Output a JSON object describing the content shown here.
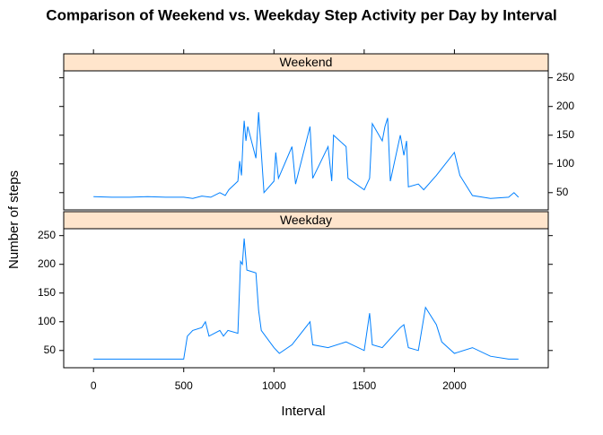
{
  "chart_data": {
    "type": "line",
    "title": "Comparison of Weekend vs. Weekday Step Activity per Day by Interval",
    "x_label": "Interval",
    "y_label": "Number of steps",
    "xlim": [
      -165,
      2520
    ],
    "xticks": [
      0,
      500,
      1000,
      1500,
      2000
    ],
    "ylim": [
      20,
      262
    ],
    "yticks": [
      50,
      100,
      150,
      200,
      250
    ],
    "color": "#0080ff",
    "strip_color": "#ffe5cc",
    "panels": [
      {
        "name": "Weekend",
        "x": [
          0,
          100,
          200,
          300,
          400,
          500,
          550,
          600,
          650,
          700,
          730,
          750,
          800,
          810,
          820,
          830,
          835,
          845,
          855,
          900,
          915,
          930,
          945,
          1000,
          1010,
          1025,
          1100,
          1120,
          1200,
          1215,
          1300,
          1320,
          1330,
          1400,
          1410,
          1500,
          1530,
          1545,
          1600,
          1615,
          1630,
          1645,
          1700,
          1720,
          1735,
          1745,
          1800,
          1830,
          1900,
          2000,
          2030,
          2100,
          2200,
          2300,
          2330,
          2355
        ],
        "values": [
          43,
          42,
          42,
          43,
          42,
          42,
          40,
          44,
          42,
          50,
          45,
          55,
          70,
          105,
          80,
          150,
          175,
          140,
          165,
          110,
          190,
          120,
          50,
          70,
          120,
          75,
          130,
          65,
          165,
          75,
          130,
          70,
          150,
          130,
          75,
          55,
          75,
          170,
          140,
          165,
          180,
          70,
          150,
          115,
          140,
          60,
          65,
          55,
          80,
          120,
          80,
          45,
          40,
          42,
          50,
          42
        ]
      },
      {
        "name": "Weekday",
        "x": [
          0,
          100,
          200,
          300,
          400,
          500,
          520,
          550,
          600,
          620,
          640,
          700,
          720,
          745,
          800,
          815,
          825,
          835,
          850,
          900,
          915,
          930,
          1000,
          1030,
          1100,
          1200,
          1215,
          1300,
          1400,
          1500,
          1530,
          1545,
          1600,
          1700,
          1720,
          1745,
          1800,
          1840,
          1900,
          1930,
          2000,
          2100,
          2200,
          2300,
          2355
        ],
        "values": [
          35,
          35,
          35,
          35,
          35,
          35,
          75,
          85,
          90,
          100,
          75,
          85,
          75,
          85,
          80,
          205,
          200,
          245,
          190,
          185,
          120,
          85,
          55,
          45,
          60,
          100,
          60,
          55,
          65,
          50,
          115,
          60,
          55,
          90,
          95,
          55,
          50,
          125,
          95,
          65,
          45,
          55,
          40,
          35,
          35
        ]
      }
    ]
  }
}
